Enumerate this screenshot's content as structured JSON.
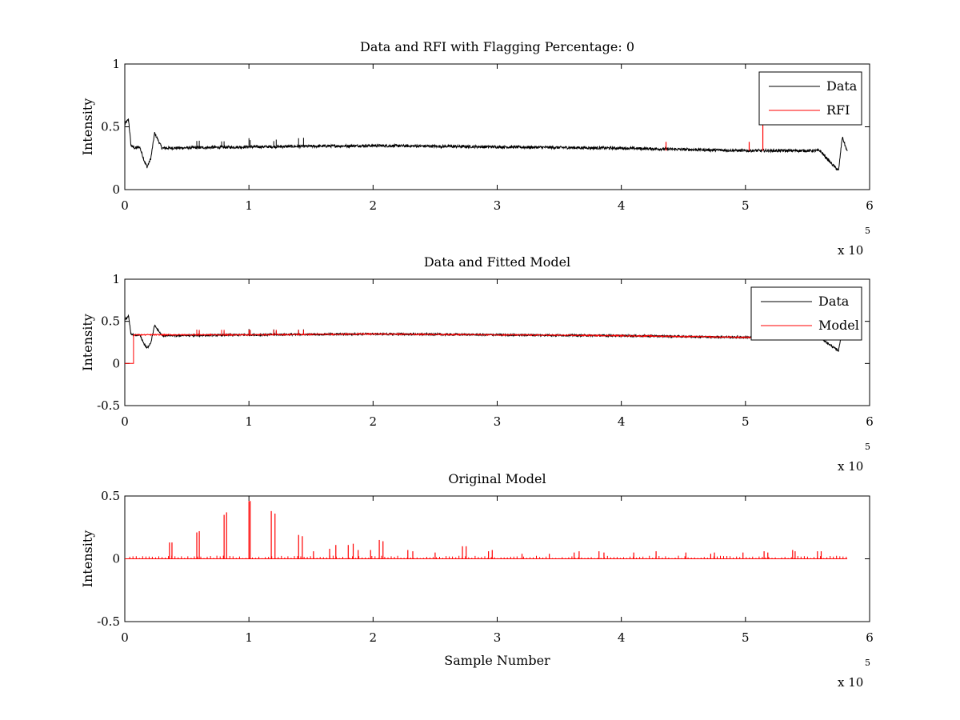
{
  "chart_data": [
    {
      "type": "line",
      "title": "Data and RFI with Flagging Percentage: 0",
      "xlabel": "",
      "ylabel": "Intensity",
      "xlim": [
        0,
        600000
      ],
      "ylim": [
        0,
        1
      ],
      "xticks": [
        "0",
        "1",
        "2",
        "3",
        "4",
        "5",
        "6"
      ],
      "yticks": [
        "0",
        "0.5",
        "1"
      ],
      "x_exponent_label": "x 10",
      "x_exponent_power": "5",
      "legend": {
        "position": "top-right",
        "entries": [
          "Data",
          "RFI"
        ]
      },
      "series": [
        {
          "name": "Data",
          "color": "#000000",
          "x": [
            0,
            3000,
            5000,
            8000,
            12000,
            16000,
            18000,
            21000,
            24000,
            30000,
            100000,
            200000,
            300000,
            400000,
            500000,
            560000,
            570000,
            575000,
            578000,
            582000
          ],
          "y": [
            0.52,
            0.56,
            0.35,
            0.33,
            0.34,
            0.22,
            0.18,
            0.25,
            0.45,
            0.33,
            0.34,
            0.35,
            0.34,
            0.33,
            0.31,
            0.31,
            0.2,
            0.15,
            0.42,
            0.3
          ]
        },
        {
          "name": "RFI",
          "color": "#ff0000",
          "x": [
            436000,
            503000,
            514000
          ],
          "y": [
            0.38,
            0.38,
            0.52
          ]
        }
      ]
    },
    {
      "type": "line",
      "title": "Data and Fitted Model",
      "xlabel": "",
      "ylabel": "Intensity",
      "xlim": [
        0,
        600000
      ],
      "ylim": [
        -0.5,
        1
      ],
      "xticks": [
        "0",
        "1",
        "2",
        "3",
        "4",
        "5",
        "6"
      ],
      "yticks": [
        "-0.5",
        "0",
        "0.5",
        "1"
      ],
      "x_exponent_label": "x 10",
      "x_exponent_power": "5",
      "legend": {
        "position": "top-right",
        "entries": [
          "Data",
          "Model"
        ]
      },
      "series": [
        {
          "name": "Data",
          "color": "#000000",
          "x": [
            0,
            3000,
            5000,
            8000,
            12000,
            16000,
            18000,
            21000,
            24000,
            30000,
            100000,
            200000,
            300000,
            400000,
            500000,
            560000,
            570000,
            575000,
            578000,
            582000
          ],
          "y": [
            0.52,
            0.56,
            0.35,
            0.33,
            0.34,
            0.22,
            0.18,
            0.25,
            0.45,
            0.33,
            0.34,
            0.35,
            0.34,
            0.33,
            0.31,
            0.31,
            0.2,
            0.15,
            0.42,
            0.3
          ]
        },
        {
          "name": "Model",
          "color": "#ff0000",
          "x": [
            0,
            7000,
            7001,
            100000,
            200000,
            300000,
            400000,
            500000,
            560000
          ],
          "y": [
            0,
            0,
            0.34,
            0.34,
            0.35,
            0.34,
            0.33,
            0.31,
            0.31
          ]
        }
      ]
    },
    {
      "type": "line",
      "title": "Original Model",
      "xlabel": "Sample Number",
      "ylabel": "Intensity",
      "xlim": [
        0,
        600000
      ],
      "ylim": [
        -0.5,
        0.5
      ],
      "xticks": [
        "0",
        "1",
        "2",
        "3",
        "4",
        "5",
        "6"
      ],
      "yticks": [
        "-0.5",
        "0",
        "0.5"
      ],
      "x_exponent_label": "x 10",
      "x_exponent_power": "5",
      "series": [
        {
          "color": "#ff0000",
          "baseline_range": [
            0,
            582000
          ],
          "spikes_x": [
            36000,
            38000,
            58000,
            60000,
            80000,
            82000,
            100000,
            101000,
            118000,
            121000,
            140000,
            143000,
            152000,
            165000,
            170000,
            180000,
            184000,
            188000,
            198000,
            205000,
            208000,
            228000,
            232000,
            250000,
            272000,
            275000,
            293000,
            296000,
            320000,
            342000,
            362000,
            366000,
            382000,
            386000,
            410000,
            428000,
            452000,
            472000,
            475000,
            498000,
            515000,
            518000,
            538000,
            540000,
            558000,
            561000
          ],
          "spikes_y": [
            0.13,
            0.13,
            0.21,
            0.22,
            0.35,
            0.37,
            0.46,
            0.46,
            0.38,
            0.36,
            0.19,
            0.18,
            0.06,
            0.08,
            0.11,
            0.11,
            0.12,
            0.07,
            0.07,
            0.15,
            0.14,
            0.07,
            0.06,
            0.05,
            0.1,
            0.1,
            0.06,
            0.07,
            0.04,
            0.04,
            0.05,
            0.06,
            0.06,
            0.05,
            0.05,
            0.06,
            0.05,
            0.04,
            0.05,
            0.05,
            0.06,
            0.05,
            0.07,
            0.06,
            0.06,
            0.06
          ]
        }
      ]
    }
  ]
}
